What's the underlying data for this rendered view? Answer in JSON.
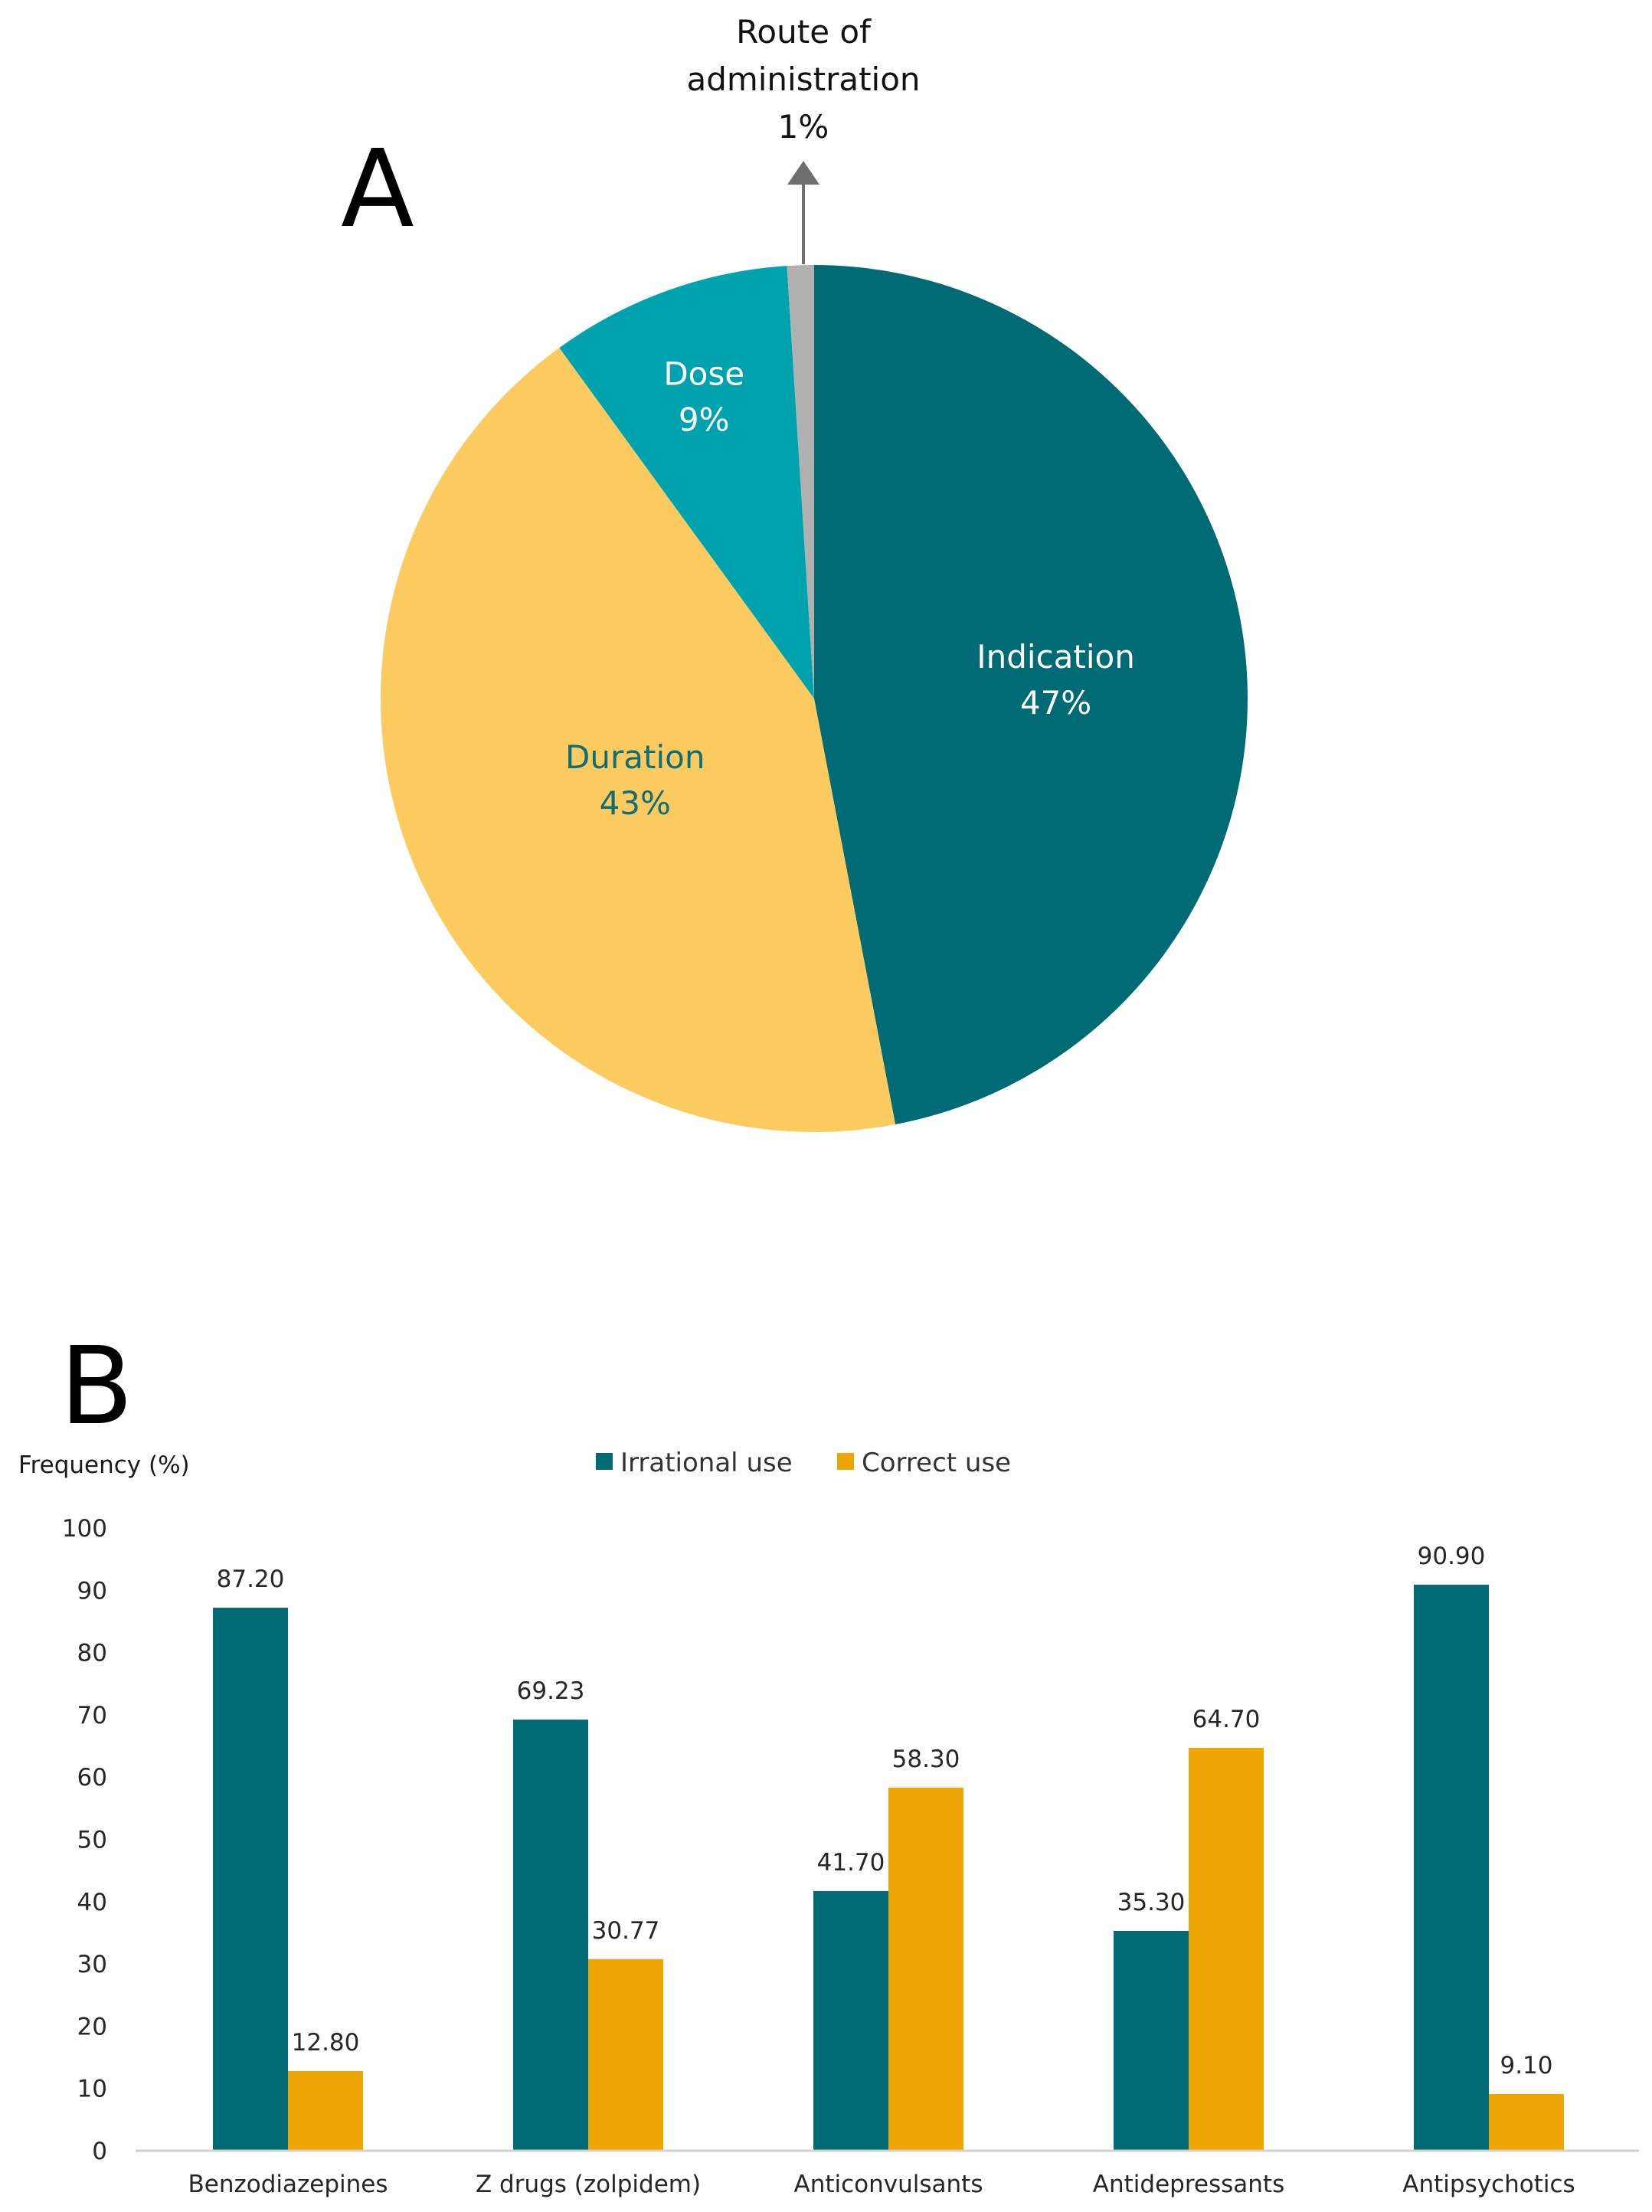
{
  "chart_data": [
    {
      "type": "pie",
      "panel": "A",
      "slices": [
        {
          "label": "Indication",
          "value": 47,
          "display": "47%",
          "color": "#006a75",
          "text_color": "#ffffff"
        },
        {
          "label": "Duration",
          "value": 43,
          "display": "43%",
          "color": "#fccb5f",
          "text_color": "#0d6e78"
        },
        {
          "label": "Dose",
          "value": 9,
          "display": "9%",
          "color": "#00a3ad",
          "text_color": "#ffffff"
        },
        {
          "label": "Route of administration",
          "value": 1,
          "display": "1%",
          "color": "#b0b0b0",
          "text_color": "#111111",
          "callout_lines": [
            "Route of",
            "administration",
            "1%"
          ]
        }
      ]
    },
    {
      "type": "bar",
      "panel": "B",
      "ylabel": "Frequency (%)",
      "ylim": [
        0,
        100
      ],
      "yticks": [
        0,
        10,
        20,
        30,
        40,
        50,
        60,
        70,
        80,
        90,
        100
      ],
      "categories": [
        "Benzodiazepines",
        "Z drugs (zolpidem)",
        "Anticonvulsants",
        "Antidepressants",
        "Antipsychotics"
      ],
      "series": [
        {
          "name": "Irrational use",
          "color": "#006a75",
          "values": [
            87.2,
            69.23,
            41.7,
            35.3,
            90.9
          ],
          "labels": [
            "87.20",
            "69.23",
            "41.70",
            "35.30",
            "90.90"
          ]
        },
        {
          "name": "Correct use",
          "color": "#eda606",
          "values": [
            12.8,
            30.77,
            58.3,
            64.7,
            9.1
          ],
          "labels": [
            "12.80",
            "30.77",
            "58.30",
            "64.70",
            "9.10"
          ]
        }
      ],
      "legend": "top-center",
      "grid": false
    }
  ]
}
